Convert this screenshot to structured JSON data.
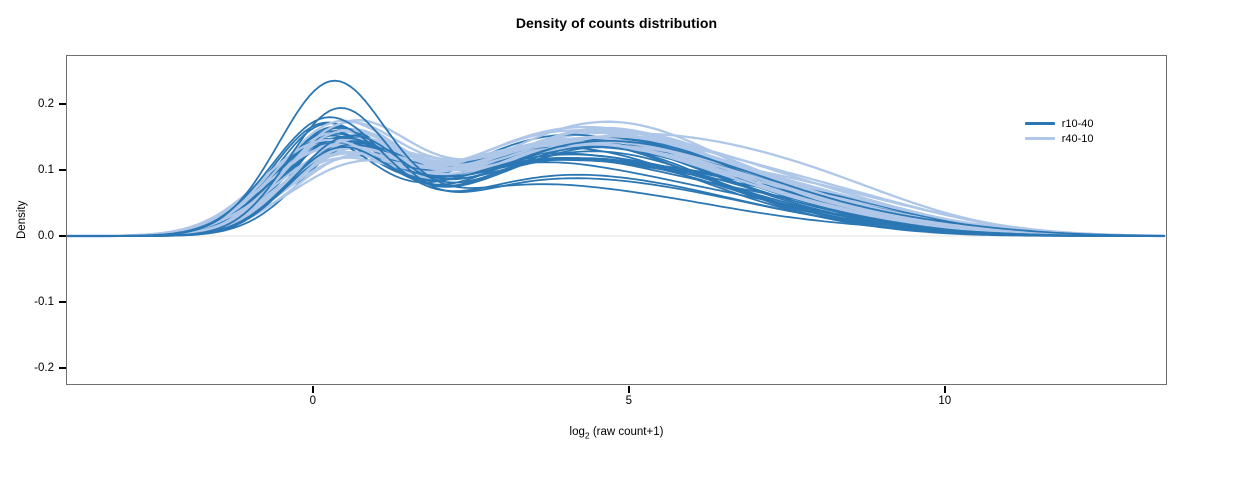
{
  "figure": {
    "background": "#ffffff",
    "axis_border_color": "#6f6f6f",
    "tick_color": "#000000",
    "baseline_color": "#e3e3e3"
  },
  "chart_data": {
    "type": "line",
    "subtype": "overlaid-density-curves",
    "title": "Density of counts distribution",
    "xlabel": {
      "base": "log",
      "sub": "2",
      "rest": " (raw count+1)",
      "full": "log2 (raw count+1)"
    },
    "ylabel": "Density",
    "xlim": [
      -3.89,
      13.5
    ],
    "ylim": [
      -0.2242,
      0.2727
    ],
    "xticks": {
      "values": [
        0,
        5,
        10
      ],
      "labels": [
        "0",
        "5",
        "10"
      ]
    },
    "yticks": {
      "values": [
        0.2,
        0.1,
        0,
        -0.1,
        -0.2
      ],
      "labels": [
        "0.2",
        "0.1",
        "0.0",
        "-0.1",
        "-0.2"
      ]
    },
    "grid": false,
    "zero_baseline": true,
    "legend_position": "top-right",
    "series": [
      {
        "name": "r10-40",
        "color": "#2b77b4",
        "approx_curve_count": 25
      },
      {
        "name": "r40-10",
        "color": "#aec7e8",
        "approx_curve_count": 25
      }
    ],
    "notable_features": {
      "first_mode_x": 0.3,
      "first_mode_max_density": 0.235,
      "second_mode_x_range": [
        4,
        6
      ],
      "second_mode_density_range": [
        0.07,
        0.15
      ],
      "tail_reaches_zero_near_x": 13
    },
    "curve_model": "density(x) = h1*G(x,m1,s1) + h2*G(x,m2,s2) + h3*G(x,m3,s3) + h4*G(x,m4,s4), G = gaussian kernel",
    "curve_params_format": [
      "series_index",
      "h1",
      "m1",
      "s1",
      "h2",
      "m2",
      "s2",
      "h3",
      "m3",
      "s3",
      "h4",
      "m4",
      "s4"
    ],
    "curves": [
      [
        1,
        0.15,
        0.55,
        0.95,
        0.085,
        3.4,
        1.7,
        0.09,
        5.6,
        1.9,
        0.015,
        8.6,
        1.6
      ],
      [
        0,
        0.158,
        0.15,
        0.82,
        0.066,
        2.9,
        1.45,
        0.072,
        5.1,
        1.9,
        0.015,
        7.8,
        1.4
      ],
      [
        1,
        0.142,
        0.3,
        1.0,
        0.092,
        3.7,
        1.75,
        0.082,
        6.0,
        2.0,
        0.012,
        9.0,
        1.5
      ],
      [
        0,
        0.15,
        0.45,
        0.78,
        0.072,
        3.5,
        1.55,
        0.08,
        5.4,
        1.7,
        0.01,
        8.8,
        1.6
      ],
      [
        1,
        0.138,
        0.45,
        0.9,
        0.078,
        3.1,
        1.6,
        0.096,
        5.3,
        1.8,
        0.018,
        8.2,
        1.6
      ],
      [
        0,
        0.146,
        0.3,
        0.92,
        0.08,
        3.2,
        1.6,
        0.07,
        5.8,
        1.9,
        0.018,
        8.2,
        1.5
      ],
      [
        1,
        0.132,
        0.2,
        0.96,
        0.088,
        3.5,
        1.7,
        0.1,
        5.7,
        1.9,
        0.01,
        9.4,
        1.4
      ],
      [
        0,
        0.138,
        0.2,
        0.8,
        0.075,
        3.0,
        1.65,
        0.092,
        4.9,
        1.7,
        0.02,
        8.4,
        1.6
      ],
      [
        1,
        0.128,
        0.6,
        0.92,
        0.095,
        3.9,
        1.8,
        0.086,
        6.2,
        2.0,
        0.016,
        8.8,
        1.5
      ],
      [
        0,
        0.135,
        0.35,
        0.9,
        0.085,
        3.4,
        1.55,
        0.065,
        6.0,
        2.0,
        0.012,
        9.0,
        1.4
      ],
      [
        1,
        0.124,
        0.35,
        1.02,
        0.082,
        3.2,
        1.65,
        0.092,
        5.5,
        1.8,
        0.02,
        8.4,
        1.7
      ],
      [
        0,
        0.132,
        0.1,
        0.84,
        0.07,
        2.7,
        1.4,
        0.095,
        5.5,
        1.9,
        0.016,
        8.6,
        1.5
      ],
      [
        1,
        0.12,
        0.5,
        0.94,
        0.09,
        3.6,
        1.7,
        0.104,
        5.9,
        1.9,
        0.008,
        9.8,
        1.3
      ],
      [
        0,
        0.128,
        0.5,
        0.88,
        0.09,
        3.6,
        1.6,
        0.078,
        5.9,
        1.8,
        0.008,
        9.4,
        1.3
      ],
      [
        1,
        0.116,
        0.25,
        0.98,
        0.098,
        3.3,
        1.75,
        0.088,
        6.4,
        2.1,
        0.014,
        9.2,
        1.5
      ],
      [
        0,
        0.125,
        0.25,
        0.86,
        0.082,
        3.1,
        1.5,
        0.1,
        5.0,
        1.7,
        0.022,
        7.9,
        1.5
      ],
      [
        1,
        0.112,
        0.42,
        0.9,
        0.086,
        3.8,
        1.65,
        0.094,
        5.4,
        1.8,
        0.019,
        8.0,
        1.6
      ],
      [
        0,
        0.12,
        0.18,
        0.9,
        0.078,
        2.8,
        1.45,
        0.09,
        5.3,
        1.8,
        0.014,
        8.1,
        1.6
      ],
      [
        1,
        0.108,
        0.15,
        0.95,
        0.092,
        3.0,
        1.7,
        0.098,
        5.8,
        2.0,
        0.011,
        9.6,
        1.4
      ],
      [
        0,
        0.118,
        0.6,
        0.85,
        0.088,
        3.3,
        1.55,
        0.096,
        5.7,
        1.7,
        0.018,
        8.9,
        1.5
      ],
      [
        1,
        0.105,
        0.58,
        1.0,
        0.1,
        3.5,
        1.8,
        0.084,
        6.1,
        1.9,
        0.015,
        8.5,
        1.5
      ],
      [
        0,
        0.145,
        0.32,
        0.87,
        0.092,
        4.0,
        1.7,
        0.074,
        6.4,
        2.0,
        0.006,
        10.0,
        1.3
      ],
      [
        1,
        0.102,
        0.33,
        0.93,
        0.088,
        3.2,
        1.6,
        0.102,
        5.2,
        1.8,
        0.021,
        8.9,
        1.6
      ],
      [
        0,
        0.152,
        0.28,
        0.83,
        0.068,
        3.2,
        1.5,
        0.102,
        5.1,
        1.8,
        0.012,
        8.3,
        1.4
      ],
      [
        1,
        0.098,
        0.48,
        0.97,
        0.094,
        3.6,
        1.75,
        0.09,
        6.3,
        2.0,
        0.009,
        9.9,
        1.3
      ],
      [
        0,
        0.136,
        0.42,
        0.89,
        0.084,
        3.5,
        1.6,
        0.068,
        6.1,
        1.9,
        0.02,
        8.7,
        1.6
      ],
      [
        1,
        0.095,
        0.28,
        0.91,
        0.102,
        3.4,
        1.7,
        0.096,
        5.6,
        1.9,
        0.017,
        8.3,
        1.5
      ],
      [
        0,
        0.13,
        0.12,
        0.81,
        0.076,
        2.9,
        1.45,
        0.086,
        5.4,
        1.7,
        0.009,
        9.1,
        1.3
      ],
      [
        1,
        0.11,
        0.4,
        0.99,
        0.096,
        3.9,
        1.8,
        0.086,
        6.5,
        2.1,
        0.013,
        9.1,
        1.4
      ],
      [
        0,
        0.126,
        0.48,
        0.86,
        0.098,
        3.7,
        1.65,
        0.08,
        5.8,
        1.8,
        0.015,
        8.0,
        1.5
      ],
      [
        1,
        0.118,
        0.18,
        0.94,
        0.084,
        3.1,
        1.65,
        0.1,
        5.5,
        1.8,
        0.018,
        8.7,
        1.6
      ],
      [
        0,
        0.14,
        0.22,
        0.84,
        0.06,
        3.0,
        1.4,
        0.094,
        5.2,
        1.9,
        0.011,
        9.3,
        1.4
      ],
      [
        1,
        0.126,
        0.52,
        0.96,
        0.09,
        3.7,
        1.75,
        0.092,
        6.0,
        2.0,
        0.01,
        9.5,
        1.4
      ],
      [
        0,
        0.134,
        0.38,
        0.91,
        0.086,
        3.4,
        1.55,
        0.072,
        6.3,
        2.0,
        0.017,
        8.5,
        1.5
      ],
      [
        1,
        0.134,
        0.38,
        0.92,
        0.098,
        3.3,
        1.7,
        0.088,
        5.8,
        1.9,
        0.016,
        8.1,
        1.5
      ],
      [
        0,
        0.148,
        0.16,
        0.79,
        0.072,
        2.6,
        1.5,
        0.098,
        4.8,
        1.7,
        0.013,
        7.7,
        1.4
      ],
      [
        1,
        0.122,
        0.24,
        1.01,
        0.086,
        3.5,
        1.65,
        0.094,
        6.2,
        2.0,
        0.012,
        9.3,
        1.4
      ],
      [
        0,
        0.124,
        0.52,
        0.88,
        0.094,
        3.9,
        1.7,
        0.082,
        6.0,
        1.8,
        0.007,
        9.7,
        1.2
      ],
      [
        1,
        0.114,
        0.46,
        0.95,
        0.092,
        3.8,
        1.8,
        0.098,
        5.4,
        1.8,
        0.02,
        8.6,
        1.6
      ],
      [
        1,
        0.106,
        0.32,
        0.98,
        0.1,
        3.2,
        1.7,
        0.09,
        6.1,
        1.9,
        0.008,
        10.0,
        1.3
      ],
      [
        1,
        0.1,
        0.56,
        0.93,
        0.088,
        3.6,
        1.75,
        0.102,
        5.7,
        1.9,
        0.015,
        8.8,
        1.5
      ],
      [
        1,
        0.13,
        0.12,
        0.96,
        0.094,
        3.4,
        1.65,
        0.084,
        5.9,
        2.0,
        0.011,
        9.0,
        1.4
      ],
      [
        1,
        0.145,
        0.44,
        0.9,
        0.082,
        3.0,
        1.6,
        0.096,
        5.3,
        1.8,
        0.017,
        8.4,
        1.6
      ],
      [
        1,
        0.155,
        0.36,
        0.94,
        0.09,
        3.5,
        1.7,
        0.086,
        5.6,
        1.9,
        0.013,
        9.2,
        1.5
      ],
      [
        1,
        0.092,
        0.62,
        1.05,
        0.096,
        4.0,
        1.85,
        0.092,
        6.6,
        2.1,
        0.019,
        8.2,
        1.6
      ],
      [
        0,
        0.185,
        0.4,
        0.8,
        0.05,
        3.1,
        1.4,
        0.062,
        5.3,
        1.7,
        0.012,
        8.0,
        1.5
      ],
      [
        0,
        0.142,
        0.55,
        0.85,
        0.062,
        3.7,
        1.5,
        0.088,
        5.2,
        1.8,
        0.006,
        9.6,
        1.2
      ],
      [
        0,
        0.172,
        0.22,
        0.88,
        0.058,
        3.3,
        1.5,
        0.06,
        5.6,
        1.8,
        0.008,
        9.2,
        1.3
      ],
      [
        0,
        0.122,
        0.4,
        0.82,
        0.095,
        3.8,
        1.65,
        0.085,
        6.2,
        1.9,
        0.01,
        9.8,
        1.4
      ],
      [
        0,
        0.225,
        0.3,
        0.85,
        0.045,
        2.8,
        1.35,
        0.055,
        5.0,
        1.8,
        0.01,
        8.5,
        1.5
      ]
    ]
  }
}
